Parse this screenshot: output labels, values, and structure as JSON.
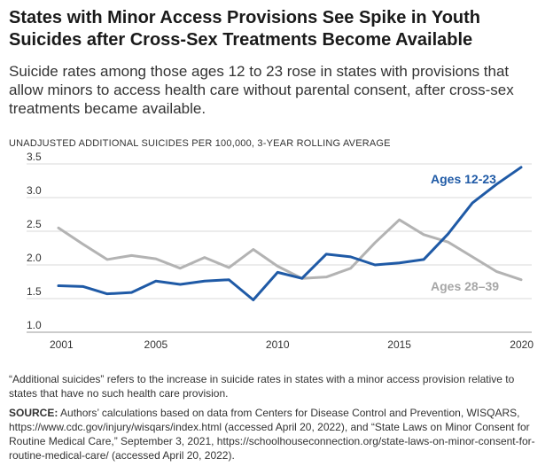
{
  "header": {
    "title": "States with Minor Access Provisions See Spike in Youth Suicides after Cross-Sex Treatments Become Available",
    "subtitle": "Suicide rates among those ages 12 to 23 rose in states with provisions that allow minors to access health care without parental consent, after cross-sex treatments became available.",
    "unit_label": "UNADJUSTED ADDITIONAL SUICIDES PER 100,000, 3-YEAR ROLLING AVERAGE"
  },
  "chart_data": {
    "type": "line",
    "x": [
      2001,
      2002,
      2003,
      2004,
      2005,
      2006,
      2007,
      2008,
      2009,
      2010,
      2011,
      2012,
      2013,
      2014,
      2015,
      2016,
      2017,
      2018,
      2019,
      2020
    ],
    "xlim": [
      2001,
      2020
    ],
    "ylim": [
      1.0,
      3.5
    ],
    "yticks": [
      "1.0",
      "1.5",
      "2.0",
      "2.5",
      "3.0",
      "3.5"
    ],
    "xticks": [
      2001,
      2005,
      2010,
      2015,
      2020
    ],
    "grid": true,
    "series": [
      {
        "name": "Ages 12-23",
        "color": "#1f5aa6",
        "values": [
          1.69,
          1.68,
          1.57,
          1.59,
          1.76,
          1.71,
          1.76,
          1.78,
          1.48,
          1.89,
          1.8,
          2.16,
          2.12,
          2.0,
          2.03,
          2.08,
          2.46,
          2.92,
          3.2,
          3.45
        ]
      },
      {
        "name": "Ages 28–39",
        "color": "#b3b3b3",
        "values": [
          2.55,
          2.31,
          2.08,
          2.14,
          2.09,
          1.95,
          2.11,
          1.96,
          2.23,
          1.98,
          1.8,
          1.82,
          1.95,
          2.33,
          2.67,
          2.45,
          2.34,
          2.12,
          1.9,
          1.78
        ]
      }
    ]
  },
  "footer": {
    "note": "“Additional suicides” refers to the increase in suicide rates in states with a minor access provision relative to states that have no such health care provision.",
    "source_label": "SOURCE:",
    "source_text": " Authors’ calculations based on data from Centers for Disease Control and Prevention, WISQARS, https://www.cdc.gov/injury/wisqars/index.html (accessed April 20, 2022), and “State Laws on Minor Consent for Routine Medical Care,” September 3, 2021, https://schoolhouseconnection.org/state-laws-on-minor-consent-for-routine-medical-care/ (accessed April 20, 2022)."
  }
}
